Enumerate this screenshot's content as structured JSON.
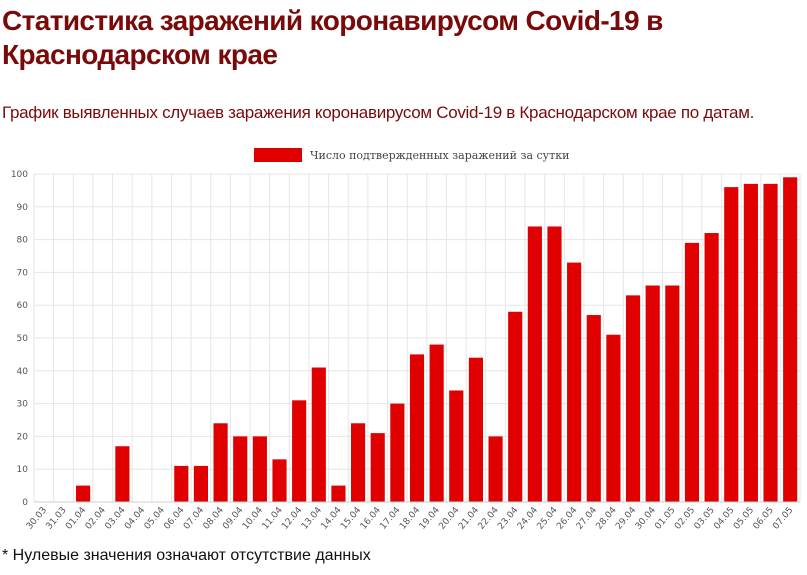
{
  "page": {
    "title": "Статистика заражений коронавирусом Covid-19 в Краснодарском крае",
    "subtitle": "График выявленных случаев заражения коронавирусом Covid-19 в Краснодарском крае по датам.",
    "footnote": "* Нулевые значения означают отсутствие данных"
  },
  "colors": {
    "bar": "#e00000",
    "title": "#7a0a0a",
    "grid": "#e6e6e6"
  },
  "chart_data": {
    "type": "bar",
    "title": "",
    "xlabel": "",
    "ylabel": "",
    "ylim": [
      0,
      100
    ],
    "yticks": [
      0,
      10,
      20,
      30,
      40,
      50,
      60,
      70,
      80,
      90,
      100
    ],
    "grid": true,
    "legend_position": "top-center",
    "categories": [
      "30.03",
      "31.03",
      "01.04",
      "02.04",
      "03.04",
      "04.04",
      "05.04",
      "06.04",
      "07.04",
      "08.04",
      "09.04",
      "10.04",
      "11.04",
      "12.04",
      "13.04",
      "14.04",
      "15.04",
      "16.04",
      "17.04",
      "18.04",
      "19.04",
      "20.04",
      "21.04",
      "22.04",
      "23.04",
      "24.04",
      "25.04",
      "26.04",
      "27.04",
      "28.04",
      "29.04",
      "30.04",
      "01.05",
      "02.05",
      "03.05",
      "04.05",
      "05.05",
      "06.05",
      "07.05"
    ],
    "series": [
      {
        "name": "Число подтвержденных заражений за сутки",
        "values": [
          0,
          0,
          5,
          0,
          17,
          0,
          0,
          11,
          11,
          24,
          20,
          20,
          13,
          31,
          41,
          5,
          24,
          21,
          30,
          45,
          48,
          34,
          44,
          20,
          58,
          84,
          84,
          73,
          57,
          51,
          63,
          66,
          66,
          79,
          82,
          96,
          97,
          97,
          99
        ]
      }
    ]
  }
}
